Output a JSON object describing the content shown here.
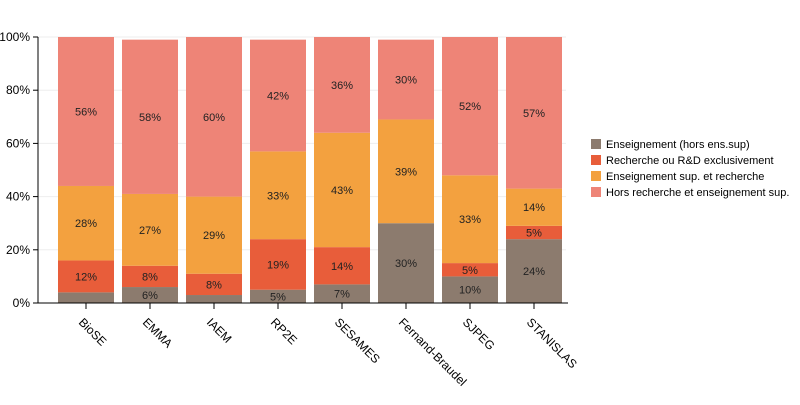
{
  "chart_data": {
    "type": "bar",
    "stacked": true,
    "normalized": true,
    "title": "",
    "xlabel": "",
    "ylabel": "",
    "ylim": [
      0,
      100
    ],
    "yticks": [
      "0%",
      "20%",
      "40%",
      "60%",
      "80%",
      "100%"
    ],
    "grid": true,
    "legend_position": "right",
    "categories": [
      "BioSE",
      "EMMA",
      "IAEM",
      "RP2E",
      "SESAMES",
      "Fernand-Braudel",
      "SJPEG",
      "STANISLAS"
    ],
    "series": [
      {
        "name": "Enseignement (hors ens.sup)",
        "color": "#8c7b6e",
        "values": [
          4,
          6,
          3,
          5,
          7,
          30,
          10,
          24
        ]
      },
      {
        "name": "Recherche ou R&D exclusivement",
        "color": "#e85d3a",
        "values": [
          12,
          8,
          8,
          19,
          14,
          0,
          5,
          5
        ]
      },
      {
        "name": "Enseignement sup. et recherche",
        "color": "#f3a13f",
        "values": [
          28,
          27,
          29,
          33,
          43,
          39,
          33,
          14
        ]
      },
      {
        "name": "Hors recherche et enseignement sup.",
        "color": "#ee8477",
        "values": [
          56,
          58,
          60,
          42,
          36,
          30,
          52,
          57
        ]
      }
    ]
  }
}
